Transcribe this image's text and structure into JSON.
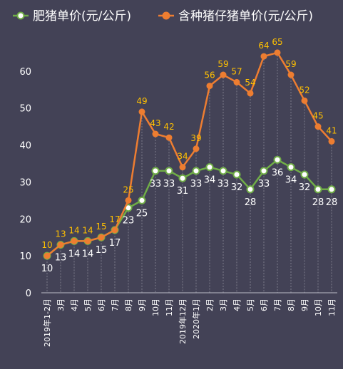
{
  "chart_data": {
    "type": "line",
    "title": "",
    "xlabel": "",
    "ylabel": "",
    "ylim": [
      0,
      70
    ],
    "yticks": [
      0,
      10,
      20,
      30,
      40,
      50,
      60
    ],
    "legend_position": "top",
    "grid": "vertical dashed lines per category",
    "categories": [
      "2019年1-2月",
      "3月",
      "4月",
      "5月",
      "6月",
      "7月",
      "8月",
      "9月",
      "10月",
      "11月",
      "2019年12月",
      "2020年1月",
      "2月",
      "3月",
      "4月",
      "5月",
      "6月",
      "7月",
      "8月",
      "9月",
      "10月",
      "11月"
    ],
    "series": [
      {
        "name": "肥猪单价(元/公斤)",
        "color": "#70AD47",
        "values": [
          10,
          13,
          14,
          14,
          15,
          17,
          23,
          25,
          33,
          33,
          31,
          33,
          34,
          33,
          32,
          28,
          33,
          36,
          34,
          32,
          28,
          28
        ],
        "labels": [
          "10",
          "13",
          "14",
          "14",
          "15",
          "17",
          "23",
          "25",
          "33",
          "33",
          "31",
          "33",
          "34",
          "33",
          "32",
          "28",
          "33",
          "36",
          "34",
          "32",
          "28",
          "28"
        ]
      },
      {
        "name": "含种猪仔猪单价(元/公斤)",
        "color": "#ED7D31",
        "values": [
          10,
          13,
          14,
          14,
          15,
          17,
          25,
          49,
          43,
          42,
          34,
          39,
          56,
          59,
          57,
          54,
          64,
          65,
          59,
          52,
          45,
          41
        ],
        "labels": [
          "10",
          "13",
          "14",
          "14",
          "15",
          "17",
          "25",
          "49",
          "43",
          "42",
          "34",
          "39",
          "56",
          "59",
          "57",
          "54",
          "64",
          "65",
          "59",
          "52",
          "45",
          "41"
        ]
      }
    ]
  }
}
